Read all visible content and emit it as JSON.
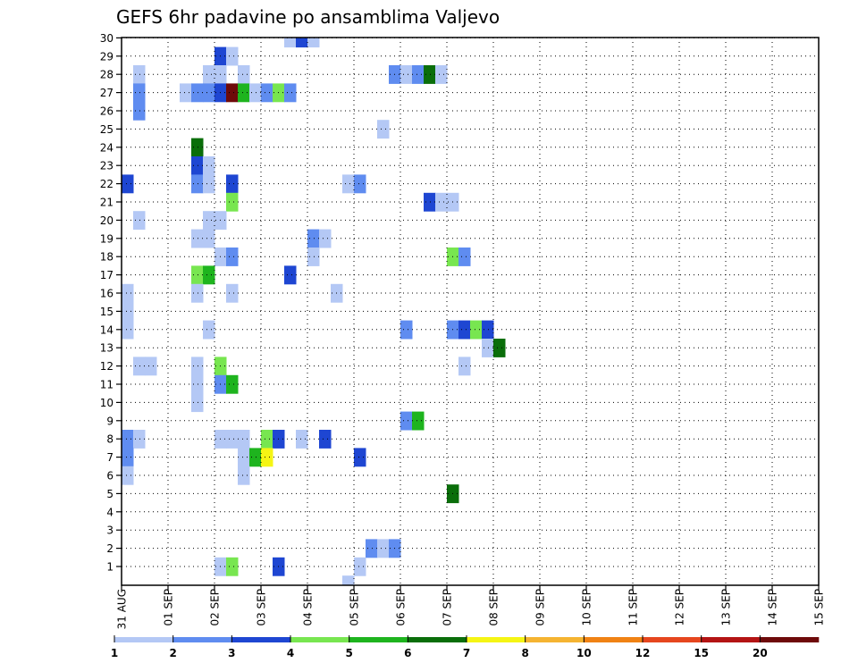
{
  "chart_data": {
    "type": "heatmap",
    "title": "GEFS 6hr padavine po ansamblima Valjevo",
    "xlabel": "",
    "ylabel": "",
    "x_ticks": [
      "31 AUG",
      "01 SEP",
      "02 SEP",
      "03 SEP",
      "04 SEP",
      "05 SEP",
      "06 SEP",
      "07 SEP",
      "08 SEP",
      "09 SEP",
      "10 SEP",
      "11 SEP",
      "12 SEP",
      "13 SEP",
      "14 SEP",
      "15 SEP"
    ],
    "x_unit": "6-hour steps from 31 AUG 00Z",
    "xlim": [
      0,
      60
    ],
    "y_ticks": [
      1,
      2,
      3,
      4,
      5,
      6,
      7,
      8,
      9,
      10,
      11,
      12,
      13,
      14,
      15,
      16,
      17,
      18,
      19,
      20,
      21,
      22,
      23,
      24,
      25,
      26,
      27,
      28,
      29,
      30
    ],
    "ylim": [
      0,
      30
    ],
    "grid": true,
    "colorbar": {
      "labels": [
        "1",
        "2",
        "3",
        "4",
        "5",
        "6",
        "7",
        "8",
        "10",
        "12",
        "15",
        "20"
      ],
      "bins": [
        {
          "from": 1,
          "to": 2,
          "color": "#b4c8f5"
        },
        {
          "from": 2,
          "to": 3,
          "color": "#5f8cf0"
        },
        {
          "from": 3,
          "to": 4,
          "color": "#1e46d2"
        },
        {
          "from": 4,
          "to": 5,
          "color": "#78e650"
        },
        {
          "from": 5,
          "to": 6,
          "color": "#1eb41e"
        },
        {
          "from": 6,
          "to": 7,
          "color": "#0a6e0a"
        },
        {
          "from": 7,
          "to": 8,
          "color": "#f5f514"
        },
        {
          "from": 8,
          "to": 10,
          "color": "#f5b432"
        },
        {
          "from": 10,
          "to": 12,
          "color": "#f08214"
        },
        {
          "from": 12,
          "to": 15,
          "color": "#e6461e"
        },
        {
          "from": 15,
          "to": 20,
          "color": "#b41414"
        },
        {
          "from": 20,
          "to": 25,
          "color": "#6e0a0a"
        }
      ]
    },
    "cells": [
      [
        14,
        30,
        1
      ],
      [
        15,
        30,
        3
      ],
      [
        16,
        30,
        1
      ],
      [
        8,
        29,
        3
      ],
      [
        9,
        29,
        1
      ],
      [
        1,
        28,
        1
      ],
      [
        7,
        28,
        1
      ],
      [
        8,
        28,
        1
      ],
      [
        10,
        28,
        1
      ],
      [
        23,
        28,
        2
      ],
      [
        24,
        28,
        1
      ],
      [
        25,
        28,
        2
      ],
      [
        26,
        28,
        6
      ],
      [
        27,
        28,
        1
      ],
      [
        1,
        27,
        2
      ],
      [
        5,
        27,
        1
      ],
      [
        6,
        27,
        2
      ],
      [
        7,
        27,
        2
      ],
      [
        8,
        27,
        3
      ],
      [
        9,
        27,
        20
      ],
      [
        10,
        27,
        5
      ],
      [
        11,
        27,
        1
      ],
      [
        12,
        27,
        2
      ],
      [
        13,
        27,
        4
      ],
      [
        14,
        27,
        2
      ],
      [
        1,
        26,
        2
      ],
      [
        22,
        25,
        1
      ],
      [
        6,
        24,
        6
      ],
      [
        6,
        23,
        3
      ],
      [
        7,
        23,
        1
      ],
      [
        0,
        22,
        3
      ],
      [
        6,
        22,
        2
      ],
      [
        7,
        22,
        1
      ],
      [
        9,
        22,
        3
      ],
      [
        19,
        22,
        1
      ],
      [
        20,
        22,
        2
      ],
      [
        9,
        21,
        4
      ],
      [
        26,
        21,
        3
      ],
      [
        27,
        21,
        1
      ],
      [
        28,
        21,
        1
      ],
      [
        1,
        20,
        1
      ],
      [
        7,
        20,
        1
      ],
      [
        8,
        20,
        1
      ],
      [
        6,
        19,
        1
      ],
      [
        7,
        19,
        1
      ],
      [
        16,
        19,
        2
      ],
      [
        17,
        19,
        1
      ],
      [
        8,
        18,
        1
      ],
      [
        9,
        18,
        2
      ],
      [
        16,
        18,
        1
      ],
      [
        28,
        18,
        4
      ],
      [
        29,
        18,
        2
      ],
      [
        6,
        17,
        4
      ],
      [
        7,
        17,
        5
      ],
      [
        14,
        17,
        3
      ],
      [
        0,
        16,
        1
      ],
      [
        6,
        16,
        1
      ],
      [
        9,
        16,
        1
      ],
      [
        18,
        16,
        1
      ],
      [
        0,
        15,
        1
      ],
      [
        0,
        14,
        1
      ],
      [
        7,
        14,
        1
      ],
      [
        24,
        14,
        2
      ],
      [
        28,
        14,
        2
      ],
      [
        29,
        14,
        3
      ],
      [
        30,
        14,
        4
      ],
      [
        31,
        14,
        3
      ],
      [
        31,
        13,
        1
      ],
      [
        32,
        13,
        6
      ],
      [
        1,
        12,
        1
      ],
      [
        2,
        12,
        1
      ],
      [
        6,
        12,
        1
      ],
      [
        8,
        12,
        4
      ],
      [
        29,
        12,
        1
      ],
      [
        6,
        11,
        1
      ],
      [
        8,
        11,
        2
      ],
      [
        9,
        11,
        5
      ],
      [
        6,
        10,
        1
      ],
      [
        24,
        9,
        2
      ],
      [
        25,
        9,
        5
      ],
      [
        0,
        8,
        2
      ],
      [
        1,
        8,
        1
      ],
      [
        8,
        8,
        1
      ],
      [
        9,
        8,
        1
      ],
      [
        10,
        8,
        1
      ],
      [
        12,
        8,
        4
      ],
      [
        13,
        8,
        3
      ],
      [
        15,
        8,
        1
      ],
      [
        17,
        8,
        3
      ],
      [
        0,
        7,
        2
      ],
      [
        10,
        7,
        1
      ],
      [
        11,
        7,
        5
      ],
      [
        12,
        7,
        7
      ],
      [
        20,
        7,
        3
      ],
      [
        0,
        6,
        1
      ],
      [
        10,
        6,
        1
      ],
      [
        28,
        5,
        6
      ],
      [
        21,
        2,
        2
      ],
      [
        22,
        2,
        1
      ],
      [
        23,
        2,
        2
      ],
      [
        8,
        1,
        1
      ],
      [
        9,
        1,
        4
      ],
      [
        13,
        1,
        3
      ],
      [
        20,
        1,
        1
      ],
      [
        19,
        0,
        1
      ]
    ],
    "cells_format": "[x_step, member, precipitation_mm]; member 0 = control run (drawn below row 1)"
  }
}
